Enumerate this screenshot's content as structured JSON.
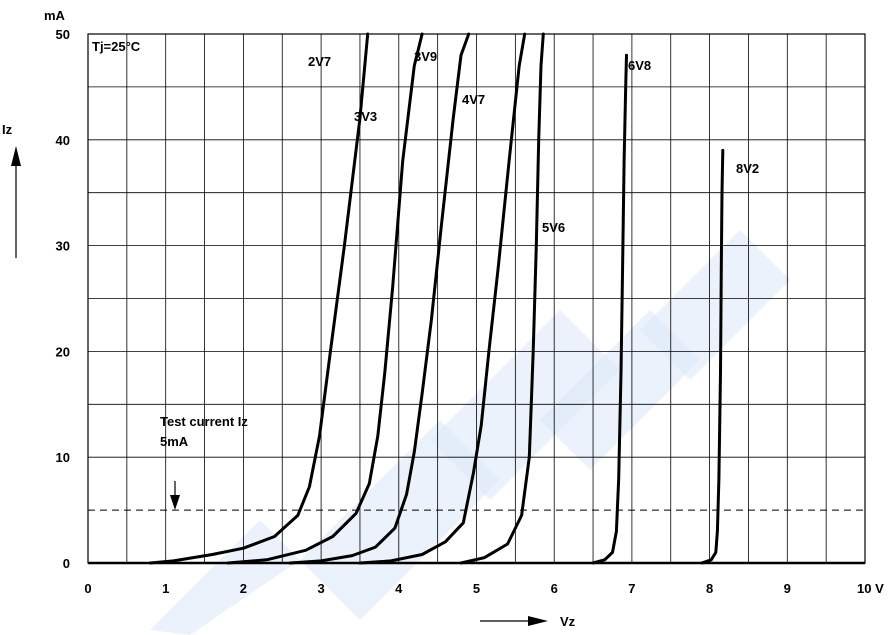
{
  "chart_data": {
    "type": "line",
    "title": "",
    "xlabel": "Vz",
    "ylabel": "Iz",
    "y_unit": "mA",
    "x_unit_suffix": "V",
    "xlim": [
      0,
      10
    ],
    "ylim": [
      0,
      50
    ],
    "x_ticks": [
      0,
      1,
      2,
      3,
      4,
      5,
      6,
      7,
      8,
      9,
      10
    ],
    "y_ticks": [
      0,
      10,
      20,
      30,
      40,
      50
    ],
    "x_tick_labels": [
      "0",
      "1",
      "2",
      "3",
      "4",
      "5",
      "6",
      "7",
      "8",
      "9",
      "10 V"
    ],
    "y_tick_labels": [
      "0",
      "10",
      "20",
      "30",
      "40",
      "50"
    ],
    "grid": true,
    "condition_label": "Tj=25°C",
    "test_current": {
      "value": 5,
      "label_line1": "Test current Iz",
      "label_line2": "5mA"
    },
    "series": [
      {
        "name": "2V7",
        "x": [
          0.8,
          1.1,
          1.6,
          2.0,
          2.4,
          2.7,
          2.85,
          2.98,
          3.12,
          3.3,
          3.5,
          3.6
        ],
        "y": [
          0,
          0.2,
          0.8,
          1.4,
          2.5,
          4.5,
          7.2,
          12,
          20,
          30,
          42,
          50
        ]
      },
      {
        "name": "3V3",
        "x": [
          1.8,
          2.3,
          2.8,
          3.15,
          3.45,
          3.62,
          3.73,
          3.82,
          3.92,
          4.05,
          4.2,
          4.3
        ],
        "y": [
          0,
          0.3,
          1.2,
          2.5,
          4.7,
          7.5,
          12,
          18,
          26,
          38,
          47,
          50
        ]
      },
      {
        "name": "3V9",
        "x": [
          2.6,
          3.0,
          3.4,
          3.7,
          3.95,
          4.1,
          4.2,
          4.3,
          4.42,
          4.55,
          4.7,
          4.8,
          4.9
        ],
        "y": [
          0,
          0.2,
          0.7,
          1.5,
          3.3,
          6.5,
          10.5,
          16,
          23,
          32,
          42,
          48,
          50
        ]
      },
      {
        "name": "4V7",
        "x": [
          3.5,
          3.9,
          4.3,
          4.6,
          4.83,
          4.96,
          5.06,
          5.16,
          5.28,
          5.42,
          5.55,
          5.62
        ],
        "y": [
          0,
          0.2,
          0.8,
          2.0,
          3.8,
          8.5,
          13,
          20,
          28,
          38,
          47,
          50
        ]
      },
      {
        "name": "5V6",
        "x": [
          4.8,
          5.1,
          5.4,
          5.58,
          5.68,
          5.73,
          5.77,
          5.8,
          5.83,
          5.86
        ],
        "y": [
          0,
          0.5,
          1.8,
          4.5,
          10,
          20,
          30,
          40,
          47,
          50
        ]
      },
      {
        "name": "6V8",
        "x": [
          6.5,
          6.65,
          6.75,
          6.8,
          6.83,
          6.86,
          6.88,
          6.9,
          6.92,
          6.93
        ],
        "y": [
          0,
          0.3,
          1.0,
          3.0,
          8,
          18,
          28,
          38,
          45,
          48
        ]
      },
      {
        "name": "8V2",
        "x": [
          7.9,
          8.02,
          8.08,
          8.1,
          8.12,
          8.14,
          8.15,
          8.16,
          8.17
        ],
        "y": [
          0,
          0.3,
          1.0,
          3.0,
          8,
          18,
          28,
          35,
          39
        ]
      }
    ]
  }
}
